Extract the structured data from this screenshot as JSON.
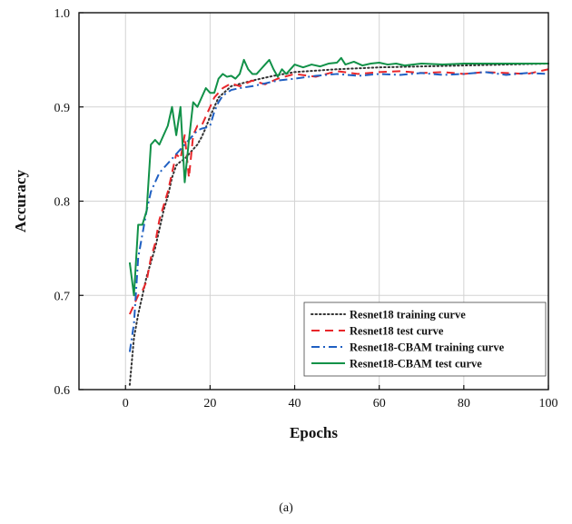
{
  "figure": {
    "caption": "(a)"
  },
  "chart_data": {
    "type": "line",
    "title": "",
    "xlabel": "Epochs",
    "ylabel": "Accuracy",
    "xlim": [
      -11,
      100
    ],
    "ylim": [
      0.6,
      1.0
    ],
    "xticks": [
      0,
      20,
      40,
      60,
      80,
      100
    ],
    "yticks": [
      0.6,
      0.7,
      0.8,
      0.9,
      1.0
    ],
    "ytick_labels": [
      "0.6",
      "0.7",
      "0.8",
      "0.9",
      "1.0"
    ],
    "grid": true,
    "legend_position": "bottom-right",
    "series": [
      {
        "name": "Resnet18 training curve",
        "color": "#333333",
        "dash": "dotted",
        "x": [
          1,
          2,
          3,
          4,
          5,
          6,
          7,
          8,
          9,
          10,
          11,
          12,
          13,
          14,
          15,
          16,
          17,
          18,
          19,
          20,
          22,
          25,
          30,
          35,
          40,
          50,
          60,
          70,
          80,
          90,
          100
        ],
        "y": [
          0.605,
          0.655,
          0.68,
          0.7,
          0.72,
          0.735,
          0.75,
          0.77,
          0.79,
          0.805,
          0.825,
          0.838,
          0.842,
          0.845,
          0.85,
          0.855,
          0.86,
          0.868,
          0.878,
          0.89,
          0.91,
          0.922,
          0.928,
          0.933,
          0.937,
          0.94,
          0.942,
          0.943,
          0.944,
          0.945,
          0.946
        ]
      },
      {
        "name": "Resnet18 test curve",
        "color": "#e8262a",
        "dash": "dashed",
        "x": [
          1,
          2,
          3,
          4,
          5,
          6,
          7,
          8,
          9,
          10,
          11,
          12,
          13,
          14,
          15,
          16,
          17,
          18,
          19,
          20,
          21,
          22,
          23,
          25,
          27,
          30,
          33,
          36,
          40,
          45,
          50,
          55,
          60,
          65,
          70,
          75,
          80,
          85,
          90,
          95,
          100
        ],
        "y": [
          0.68,
          0.69,
          0.7,
          0.705,
          0.715,
          0.74,
          0.755,
          0.78,
          0.795,
          0.81,
          0.83,
          0.85,
          0.845,
          0.87,
          0.825,
          0.87,
          0.88,
          0.88,
          0.89,
          0.9,
          0.91,
          0.915,
          0.92,
          0.925,
          0.922,
          0.928,
          0.924,
          0.93,
          0.935,
          0.932,
          0.938,
          0.935,
          0.937,
          0.938,
          0.936,
          0.937,
          0.935,
          0.937,
          0.936,
          0.935,
          0.94
        ]
      },
      {
        "name": "Resnet18-CBAM training curve",
        "color": "#1f5fc2",
        "dash": "dashdot",
        "x": [
          1,
          2,
          3,
          4,
          5,
          6,
          7,
          8,
          9,
          10,
          11,
          12,
          13,
          14,
          15,
          16,
          17,
          18,
          19,
          20,
          21,
          22,
          23,
          25,
          27,
          30,
          33,
          36,
          40,
          45,
          50,
          55,
          60,
          65,
          70,
          75,
          80,
          85,
          90,
          95,
          100
        ],
        "y": [
          0.64,
          0.67,
          0.74,
          0.765,
          0.79,
          0.81,
          0.82,
          0.83,
          0.835,
          0.84,
          0.845,
          0.85,
          0.855,
          0.86,
          0.865,
          0.87,
          0.875,
          0.877,
          0.878,
          0.88,
          0.895,
          0.905,
          0.912,
          0.918,
          0.92,
          0.922,
          0.925,
          0.928,
          0.93,
          0.933,
          0.935,
          0.933,
          0.935,
          0.934,
          0.936,
          0.934,
          0.935,
          0.937,
          0.934,
          0.936,
          0.935
        ]
      },
      {
        "name": "Resnet18-CBAM test curve",
        "color": "#119148",
        "dash": "solid",
        "x": [
          1,
          2,
          3,
          4,
          5,
          6,
          7,
          8,
          9,
          10,
          11,
          12,
          13,
          14,
          15,
          16,
          17,
          18,
          19,
          20,
          21,
          22,
          23,
          24,
          25,
          26,
          27,
          28,
          29,
          30,
          31,
          32,
          33,
          34,
          35,
          36,
          37,
          38,
          40,
          42,
          44,
          46,
          48,
          50,
          51,
          52,
          54,
          56,
          58,
          60,
          62,
          64,
          66,
          70,
          75,
          80,
          85,
          90,
          95,
          100
        ],
        "y": [
          0.735,
          0.7,
          0.775,
          0.775,
          0.79,
          0.86,
          0.865,
          0.86,
          0.87,
          0.88,
          0.9,
          0.87,
          0.9,
          0.82,
          0.865,
          0.905,
          0.9,
          0.91,
          0.92,
          0.915,
          0.915,
          0.93,
          0.935,
          0.932,
          0.933,
          0.93,
          0.935,
          0.95,
          0.94,
          0.935,
          0.935,
          0.94,
          0.945,
          0.95,
          0.94,
          0.932,
          0.94,
          0.935,
          0.945,
          0.942,
          0.945,
          0.943,
          0.946,
          0.947,
          0.952,
          0.945,
          0.948,
          0.944,
          0.946,
          0.947,
          0.945,
          0.946,
          0.944,
          0.946,
          0.945,
          0.946,
          0.946,
          0.946,
          0.946,
          0.946
        ]
      }
    ]
  }
}
